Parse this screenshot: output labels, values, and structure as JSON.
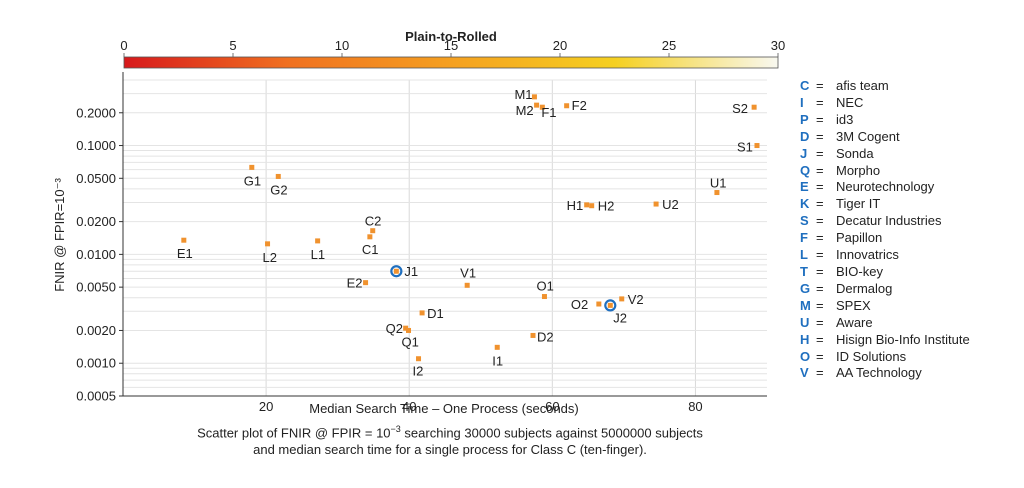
{
  "chart_data": {
    "type": "scatter",
    "xlabel": "Median Search Time – One Process (seconds)",
    "ylabel": "FNIR @ FPIR=10⁻³",
    "xlim": [
      0,
      90
    ],
    "ylim": [
      0.0005,
      0.4
    ],
    "y_scale": "log",
    "x_ticks": [
      20,
      40,
      60,
      80
    ],
    "y_ticks": [
      0.0005,
      0.001,
      0.002,
      0.005,
      0.01,
      0.02,
      0.05,
      0.1,
      0.2
    ],
    "y_tick_labels": [
      "0.0005",
      "0.0010",
      "0.0020",
      "0.0050",
      "0.0100",
      "0.0200",
      "0.0500",
      "0.1000",
      "0.2000"
    ],
    "grid": true,
    "colorbar": {
      "title": "Plain-to-Rolled",
      "range": [
        0,
        30
      ],
      "ticks": [
        0,
        5,
        10,
        15,
        20,
        25,
        30
      ],
      "colors": [
        "#d7191c",
        "#f07020",
        "#f5a020",
        "#f5d020",
        "#f8f8f0"
      ]
    },
    "marker_color": "#f0922e",
    "highlight_color": "#1f6fbf",
    "points": [
      {
        "label": "M1",
        "x": 57.5,
        "y": 0.28
      },
      {
        "label": "M2",
        "x": 57.8,
        "y": 0.235
      },
      {
        "label": "F1",
        "x": 58.6,
        "y": 0.225
      },
      {
        "label": "F2",
        "x": 62,
        "y": 0.232
      },
      {
        "label": "S2",
        "x": 88.2,
        "y": 0.225
      },
      {
        "label": "S1",
        "x": 88.6,
        "y": 0.1
      },
      {
        "label": "G1",
        "x": 18,
        "y": 0.063
      },
      {
        "label": "G2",
        "x": 21.7,
        "y": 0.052
      },
      {
        "label": "U1",
        "x": 83,
        "y": 0.037
      },
      {
        "label": "H1",
        "x": 64.8,
        "y": 0.0285
      },
      {
        "label": "H2",
        "x": 65.5,
        "y": 0.028
      },
      {
        "label": "U2",
        "x": 74.5,
        "y": 0.029
      },
      {
        "label": "E1",
        "x": 8.5,
        "y": 0.0135
      },
      {
        "label": "L2",
        "x": 20.2,
        "y": 0.0125
      },
      {
        "label": "L1",
        "x": 27.2,
        "y": 0.0133
      },
      {
        "label": "C2",
        "x": 34.9,
        "y": 0.0165
      },
      {
        "label": "C1",
        "x": 34.5,
        "y": 0.0145
      },
      {
        "label": "J1",
        "x": 38.2,
        "y": 0.007,
        "highlight": true
      },
      {
        "label": "E2",
        "x": 33.9,
        "y": 0.0055
      },
      {
        "label": "V1",
        "x": 48.1,
        "y": 0.0052
      },
      {
        "label": "O1",
        "x": 58.9,
        "y": 0.0041
      },
      {
        "label": "O2",
        "x": 66.5,
        "y": 0.0035
      },
      {
        "label": "J2",
        "x": 68.1,
        "y": 0.0034,
        "highlight": true
      },
      {
        "label": "V2",
        "x": 69.7,
        "y": 0.0039
      },
      {
        "label": "D1",
        "x": 41.8,
        "y": 0.0029
      },
      {
        "label": "Q2",
        "x": 39.5,
        "y": 0.0021
      },
      {
        "label": "Q1",
        "x": 39.9,
        "y": 0.002
      },
      {
        "label": "D2",
        "x": 57.3,
        "y": 0.0018
      },
      {
        "label": "I1",
        "x": 52.3,
        "y": 0.0014
      },
      {
        "label": "I2",
        "x": 41.3,
        "y": 0.0011
      }
    ]
  },
  "legend": [
    {
      "code": "C",
      "name": "afis team"
    },
    {
      "code": "I",
      "name": "NEC"
    },
    {
      "code": "P",
      "name": "id3"
    },
    {
      "code": "D",
      "name": "3M Cogent"
    },
    {
      "code": "J",
      "name": "Sonda"
    },
    {
      "code": "Q",
      "name": "Morpho"
    },
    {
      "code": "E",
      "name": "Neurotechnology"
    },
    {
      "code": "K",
      "name": "Tiger IT"
    },
    {
      "code": "S",
      "name": "Decatur Industries"
    },
    {
      "code": "F",
      "name": "Papillon"
    },
    {
      "code": "L",
      "name": "Innovatrics"
    },
    {
      "code": "T",
      "name": "BIO-key"
    },
    {
      "code": "G",
      "name": "Dermalog"
    },
    {
      "code": "M",
      "name": "SPEX"
    },
    {
      "code": "U",
      "name": "Aware"
    },
    {
      "code": "H",
      "name": "Hisign Bio-Info Institute"
    },
    {
      "code": "O",
      "name": "ID Solutions"
    },
    {
      "code": "V",
      "name": "AA Technology"
    }
  ],
  "legend_separator": "=",
  "caption": {
    "line1_pre": "Scatter plot of FNIR @ FPIR  = 10",
    "line1_sup": "−3",
    "line1_post": " searching 30000 subjects against 5000000 subjects",
    "line2": "and median search time for a single process for Class C (ten-finger)."
  }
}
